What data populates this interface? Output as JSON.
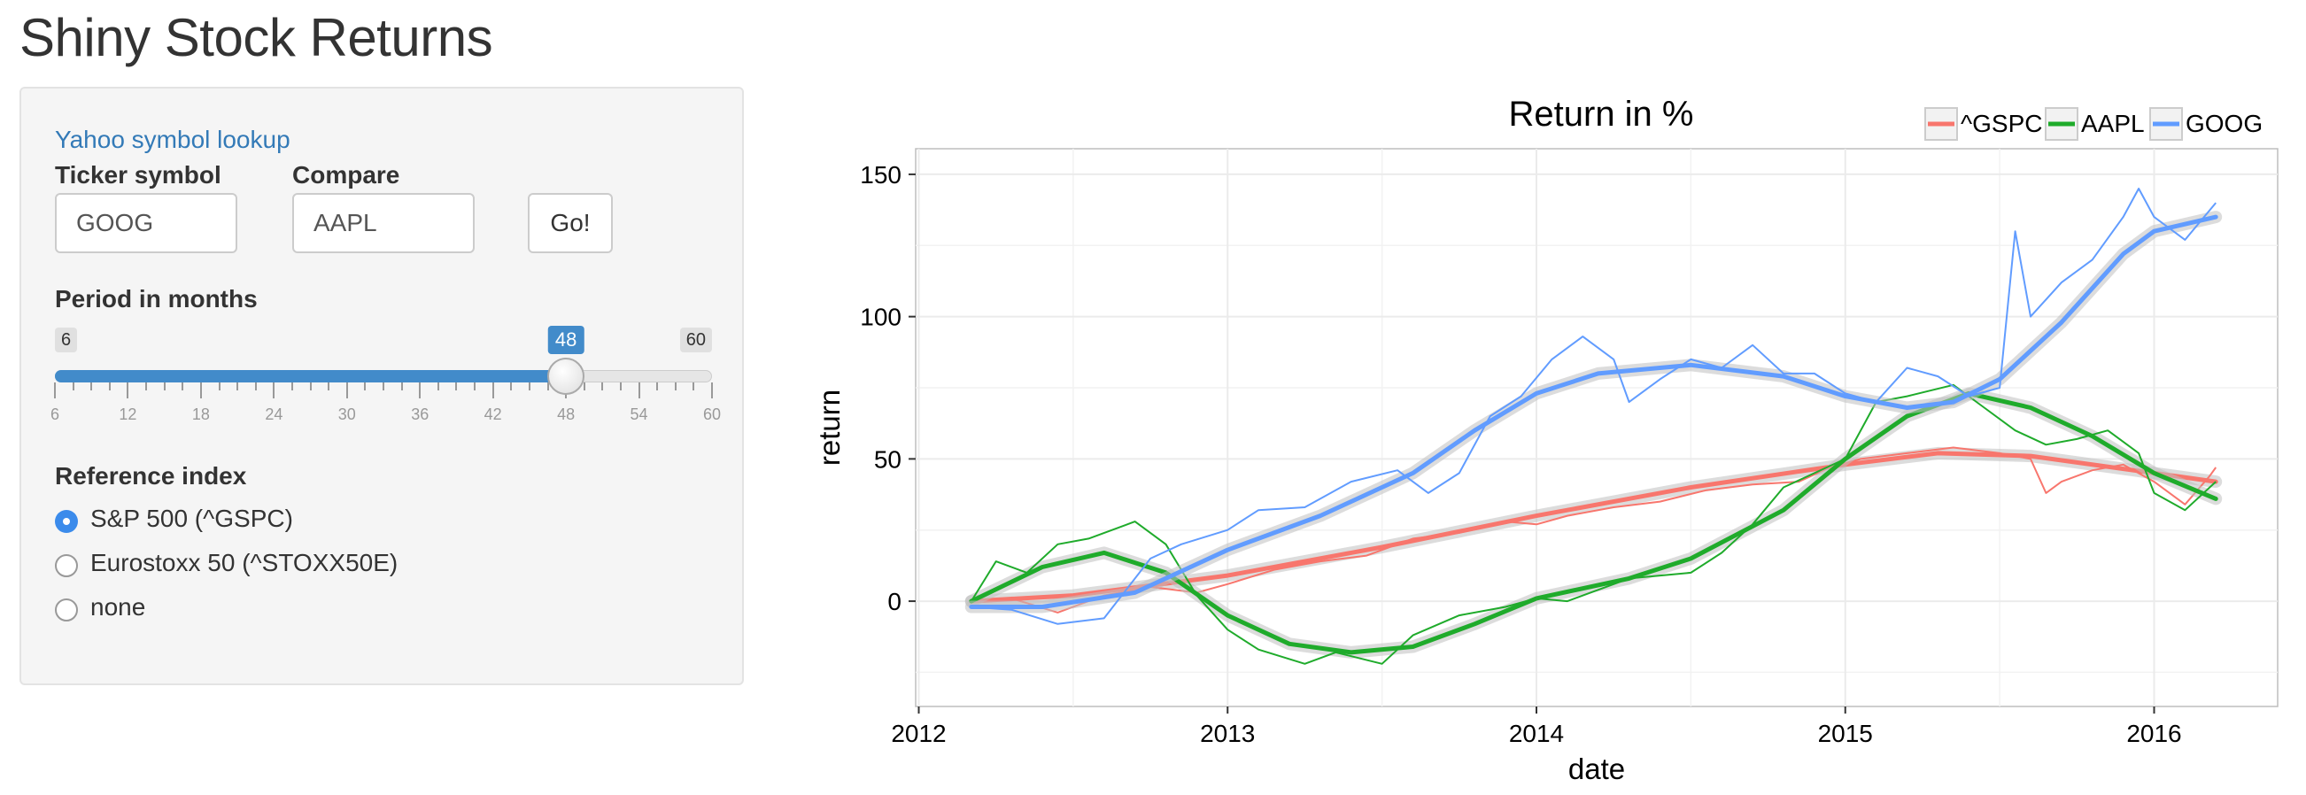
{
  "app": {
    "title": "Shiny Stock Returns"
  },
  "sidebar": {
    "lookup_link": "Yahoo symbol lookup",
    "ticker_label": "Ticker symbol",
    "ticker_value": "GOOG",
    "compare_label": "Compare",
    "compare_value": "AAPL",
    "go_label": "Go!",
    "period": {
      "label": "Period in months",
      "min": 6,
      "max": 60,
      "value": 48,
      "min_label": "6",
      "max_label": "60",
      "value_label": "48",
      "ticks": [
        "6",
        "12",
        "18",
        "24",
        "30",
        "36",
        "42",
        "48",
        "54",
        "60"
      ]
    },
    "reference": {
      "label": "Reference index",
      "options": [
        "S&P 500 (^GSPC)",
        "Eurostoxx 50 (^STOXX50E)",
        "none"
      ],
      "selected": 0
    }
  },
  "chart_data": {
    "type": "line",
    "title": "Return in %",
    "xlabel": "date",
    "ylabel": "return",
    "xlim": [
      2011.99,
      2016.4
    ],
    "ylim": [
      -37,
      159
    ],
    "x_ticks": [
      "2012",
      "2013",
      "2014",
      "2015",
      "2016"
    ],
    "y_ticks": [
      0,
      50,
      100,
      150
    ],
    "grid": true,
    "legend_position": "top-right",
    "legend": [
      "^GSPC",
      "AAPL",
      "GOOG"
    ],
    "series": [
      {
        "name": "^GSPC",
        "color": "#f8766d",
        "raw": [
          [
            2012.17,
            0
          ],
          [
            2012.3,
            1
          ],
          [
            2012.45,
            -4
          ],
          [
            2012.6,
            2
          ],
          [
            2012.75,
            5
          ],
          [
            2012.9,
            3
          ],
          [
            2013.0,
            6
          ],
          [
            2013.15,
            11
          ],
          [
            2013.3,
            14
          ],
          [
            2013.45,
            16
          ],
          [
            2013.6,
            22
          ],
          [
            2013.75,
            24
          ],
          [
            2013.9,
            28
          ],
          [
            2014.0,
            27
          ],
          [
            2014.1,
            30
          ],
          [
            2014.25,
            33
          ],
          [
            2014.4,
            35
          ],
          [
            2014.55,
            39
          ],
          [
            2014.7,
            41
          ],
          [
            2014.85,
            42
          ],
          [
            2014.95,
            47
          ],
          [
            2015.05,
            50
          ],
          [
            2015.2,
            52
          ],
          [
            2015.35,
            54
          ],
          [
            2015.5,
            52
          ],
          [
            2015.6,
            50
          ],
          [
            2015.65,
            38
          ],
          [
            2015.7,
            42
          ],
          [
            2015.8,
            46
          ],
          [
            2015.9,
            48
          ],
          [
            2016.0,
            42
          ],
          [
            2016.1,
            34
          ],
          [
            2016.18,
            44
          ],
          [
            2016.2,
            47
          ]
        ],
        "smooth": [
          [
            2012.17,
            0
          ],
          [
            2012.5,
            2
          ],
          [
            2013.0,
            9
          ],
          [
            2013.5,
            19
          ],
          [
            2014.0,
            30
          ],
          [
            2014.5,
            40
          ],
          [
            2015.0,
            48
          ],
          [
            2015.3,
            52
          ],
          [
            2015.6,
            51
          ],
          [
            2016.0,
            45
          ],
          [
            2016.2,
            42
          ]
        ]
      },
      {
        "name": "AAPL",
        "color": "#1fab2b",
        "raw": [
          [
            2012.17,
            0
          ],
          [
            2012.25,
            14
          ],
          [
            2012.35,
            10
          ],
          [
            2012.45,
            20
          ],
          [
            2012.55,
            22
          ],
          [
            2012.7,
            28
          ],
          [
            2012.8,
            20
          ],
          [
            2012.9,
            2
          ],
          [
            2013.0,
            -10
          ],
          [
            2013.1,
            -17
          ],
          [
            2013.25,
            -22
          ],
          [
            2013.35,
            -18
          ],
          [
            2013.5,
            -22
          ],
          [
            2013.6,
            -12
          ],
          [
            2013.75,
            -5
          ],
          [
            2013.9,
            -2
          ],
          [
            2014.0,
            1
          ],
          [
            2014.1,
            0
          ],
          [
            2014.3,
            8
          ],
          [
            2014.5,
            10
          ],
          [
            2014.6,
            17
          ],
          [
            2014.7,
            27
          ],
          [
            2014.8,
            40
          ],
          [
            2014.9,
            45
          ],
          [
            2015.0,
            50
          ],
          [
            2015.1,
            70
          ],
          [
            2015.2,
            72
          ],
          [
            2015.35,
            76
          ],
          [
            2015.45,
            68
          ],
          [
            2015.55,
            60
          ],
          [
            2015.65,
            55
          ],
          [
            2015.75,
            57
          ],
          [
            2015.85,
            60
          ],
          [
            2015.95,
            52
          ],
          [
            2016.0,
            38
          ],
          [
            2016.1,
            32
          ],
          [
            2016.2,
            42
          ]
        ],
        "smooth": [
          [
            2012.17,
            0
          ],
          [
            2012.4,
            12
          ],
          [
            2012.6,
            17
          ],
          [
            2012.8,
            10
          ],
          [
            2013.0,
            -5
          ],
          [
            2013.2,
            -15
          ],
          [
            2013.4,
            -18
          ],
          [
            2013.6,
            -16
          ],
          [
            2013.8,
            -8
          ],
          [
            2014.0,
            1
          ],
          [
            2014.3,
            8
          ],
          [
            2014.5,
            15
          ],
          [
            2014.8,
            32
          ],
          [
            2015.0,
            50
          ],
          [
            2015.2,
            65
          ],
          [
            2015.4,
            73
          ],
          [
            2015.6,
            68
          ],
          [
            2015.8,
            58
          ],
          [
            2016.0,
            45
          ],
          [
            2016.2,
            36
          ]
        ]
      },
      {
        "name": "GOOG",
        "color": "#619cff",
        "raw": [
          [
            2012.17,
            -2
          ],
          [
            2012.3,
            -3
          ],
          [
            2012.45,
            -8
          ],
          [
            2012.6,
            -6
          ],
          [
            2012.75,
            15
          ],
          [
            2012.85,
            20
          ],
          [
            2013.0,
            25
          ],
          [
            2013.1,
            32
          ],
          [
            2013.25,
            33
          ],
          [
            2013.4,
            42
          ],
          [
            2013.55,
            46
          ],
          [
            2013.65,
            38
          ],
          [
            2013.75,
            45
          ],
          [
            2013.85,
            65
          ],
          [
            2013.95,
            72
          ],
          [
            2014.05,
            85
          ],
          [
            2014.15,
            93
          ],
          [
            2014.25,
            85
          ],
          [
            2014.3,
            70
          ],
          [
            2014.4,
            78
          ],
          [
            2014.5,
            85
          ],
          [
            2014.6,
            82
          ],
          [
            2014.7,
            90
          ],
          [
            2014.8,
            80
          ],
          [
            2014.9,
            80
          ],
          [
            2015.0,
            73
          ],
          [
            2015.1,
            70
          ],
          [
            2015.2,
            82
          ],
          [
            2015.3,
            79
          ],
          [
            2015.4,
            72
          ],
          [
            2015.5,
            75
          ],
          [
            2015.55,
            130
          ],
          [
            2015.6,
            100
          ],
          [
            2015.7,
            112
          ],
          [
            2015.8,
            120
          ],
          [
            2015.9,
            135
          ],
          [
            2015.95,
            145
          ],
          [
            2016.0,
            135
          ],
          [
            2016.1,
            127
          ],
          [
            2016.2,
            140
          ]
        ],
        "smooth": [
          [
            2012.17,
            -2
          ],
          [
            2012.4,
            -2
          ],
          [
            2012.7,
            3
          ],
          [
            2013.0,
            18
          ],
          [
            2013.3,
            30
          ],
          [
            2013.6,
            45
          ],
          [
            2013.8,
            60
          ],
          [
            2014.0,
            73
          ],
          [
            2014.2,
            80
          ],
          [
            2014.5,
            83
          ],
          [
            2014.8,
            79
          ],
          [
            2015.0,
            72
          ],
          [
            2015.2,
            68
          ],
          [
            2015.35,
            70
          ],
          [
            2015.5,
            78
          ],
          [
            2015.7,
            98
          ],
          [
            2015.9,
            122
          ],
          [
            2016.0,
            130
          ],
          [
            2016.2,
            135
          ]
        ]
      }
    ]
  }
}
